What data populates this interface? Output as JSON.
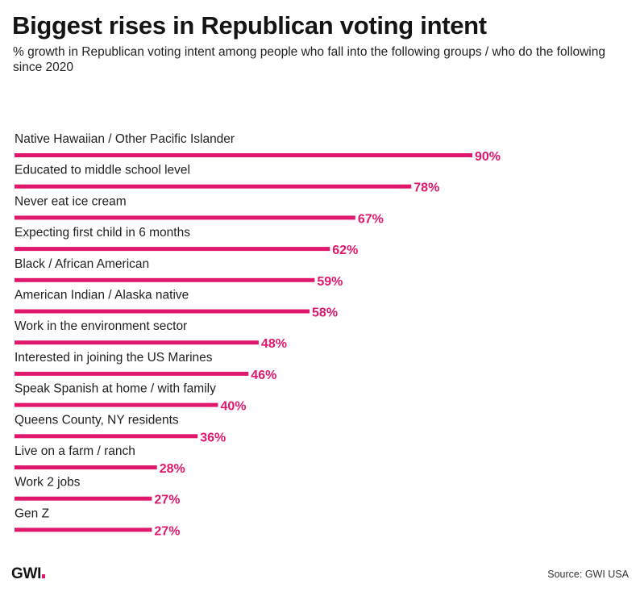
{
  "colors": {
    "accent": "#e0186d",
    "text": "#1a1a1a"
  },
  "header": {
    "title": "Biggest rises in Republican voting intent",
    "subtitle": "% growth in Republican voting intent among people who fall into the following groups / who do the following since 2020"
  },
  "footer": {
    "logo_text": "GWI",
    "source": "Source: GWI USA"
  },
  "chart_data": {
    "type": "bar",
    "orientation": "horizontal",
    "title": "Biggest rises in Republican voting intent",
    "unit": "%",
    "xlim": [
      0,
      100
    ],
    "categories": [
      "Native Hawaiian / Other Pacific Islander",
      "Educated to middle school level",
      "Never eat ice cream",
      "Expecting first child in 6 months",
      "Black / African American",
      "American Indian / Alaska native",
      "Work in the environment sector",
      "Interested in joining the US Marines",
      "Speak Spanish at home / with family",
      "Queens County, NY residents",
      "Live on a farm / ranch",
      "Work 2 jobs",
      "Gen Z"
    ],
    "values": [
      90,
      78,
      67,
      62,
      59,
      58,
      48,
      46,
      40,
      36,
      28,
      27,
      27
    ],
    "labels": [
      "90%",
      "78%",
      "67%",
      "62%",
      "59%",
      "58%",
      "48%",
      "46%",
      "40%",
      "36%",
      "28%",
      "27%",
      "27%"
    ]
  }
}
